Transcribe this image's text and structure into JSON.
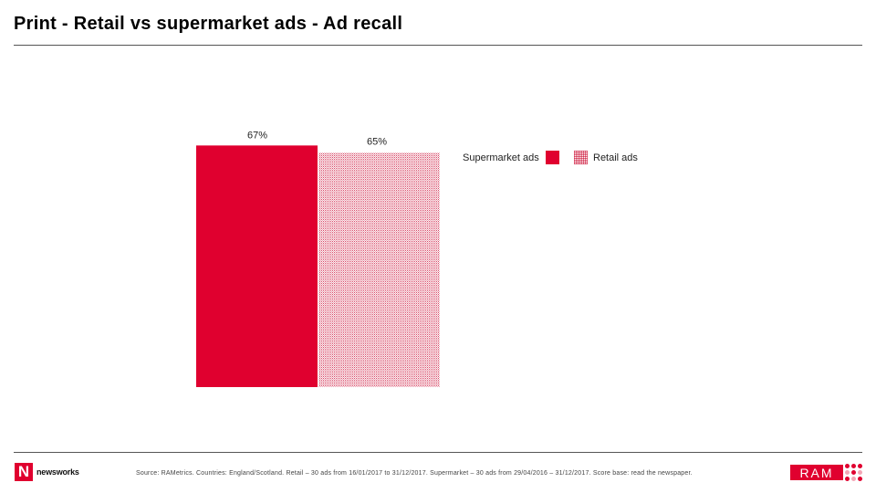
{
  "title": "Print - Retail vs supermarket ads - Ad recall",
  "colors": {
    "brand_red": "#e0002f",
    "rule": "#555555"
  },
  "chart_data": {
    "type": "bar",
    "categories": [
      ""
    ],
    "series": [
      {
        "name": "Supermarket ads",
        "values": [
          67
        ],
        "label": "67%",
        "fill": "solid",
        "color": "#e0002f"
      },
      {
        "name": "Retail ads",
        "values": [
          65
        ],
        "label": "65%",
        "fill": "hatched",
        "color": "#e0002f"
      }
    ],
    "ylim": [
      0,
      100
    ],
    "title": "",
    "xlabel": "",
    "ylabel": "",
    "grid": false,
    "legend": "top-right"
  },
  "footer": {
    "logo_letter": "N",
    "logo_word": "newsworks",
    "source": "Source: RAMetrics. Countries: England/Scotland. Retail – 30 ads from 16/01/2017 to 31/12/2017. Supermarket – 30 ads from 29/04/2016 – 31/12/2017. Score base: read the newspaper.",
    "ram_label": "RAM"
  }
}
